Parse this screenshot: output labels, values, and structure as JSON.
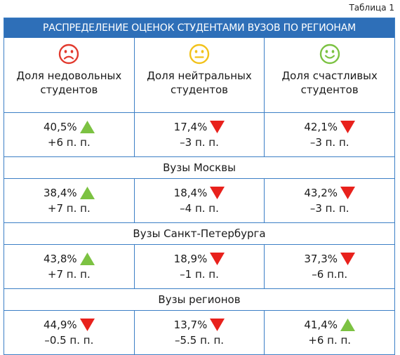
{
  "caption": "Таблица 1",
  "title": "РАСПРЕДЕЛЕНИЕ ОЦЕНОК СТУДЕНТАМИ ВУЗОВ ПО РЕГИОНАМ",
  "columns": [
    {
      "icon": "sad-face-icon",
      "color": "#e23a2e",
      "label": "Доля недовольных студентов"
    },
    {
      "icon": "neutral-face-icon",
      "color": "#f2c21b",
      "label": "Доля нейтральных студентов"
    },
    {
      "icon": "happy-face-icon",
      "color": "#7cc242",
      "label": "Доля счастливых студентов"
    }
  ],
  "colors": {
    "up": "#7cc242",
    "down": "#e8211c",
    "border": "#3c7fc6",
    "header": "#2e6fb8"
  },
  "sections": [
    {
      "title": "",
      "cells": [
        {
          "value": "40,5%",
          "delta": "+6 п. п.",
          "direction": "up"
        },
        {
          "value": "17,4%",
          "delta": "–3 п. п.",
          "direction": "down"
        },
        {
          "value": "42,1%",
          "delta": "–3 п. п.",
          "direction": "down"
        }
      ]
    },
    {
      "title": "Вузы Москвы",
      "cells": [
        {
          "value": "38,4%",
          "delta": "+7 п. п.",
          "direction": "up"
        },
        {
          "value": "18,4%",
          "delta": "–4 п. п.",
          "direction": "down"
        },
        {
          "value": "43,2%",
          "delta": "–3 п. п.",
          "direction": "down"
        }
      ]
    },
    {
      "title": "Вузы Санкт-Петербурга",
      "cells": [
        {
          "value": "43,8%",
          "delta": "+7 п. п.",
          "direction": "up"
        },
        {
          "value": "18,9%",
          "delta": "–1 п. п.",
          "direction": "down"
        },
        {
          "value": "37,3%",
          "delta": "–6 п.п.",
          "direction": "down"
        }
      ]
    },
    {
      "title": "Вузы регионов",
      "cells": [
        {
          "value": "44,9%",
          "delta": "–0.5 п. п.",
          "direction": "down"
        },
        {
          "value": "13,7%",
          "delta": "–5.5 п. п.",
          "direction": "down"
        },
        {
          "value": "41,4%",
          "delta": "+6 п. п.",
          "direction": "up"
        }
      ]
    }
  ]
}
